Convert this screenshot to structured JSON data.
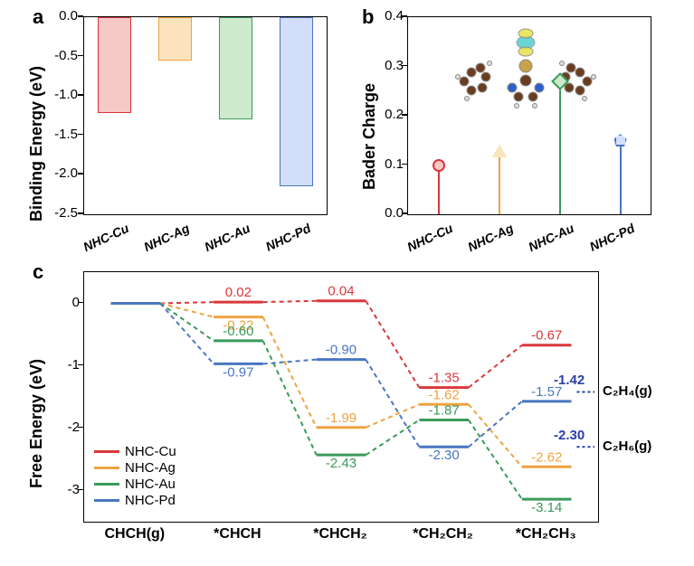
{
  "colors": {
    "cu": "#d9383a",
    "ag": "#eda33f",
    "au": "#3a9a5a",
    "pd": "#4976c0",
    "cu_fill": "#f6c9c9",
    "ag_fill": "#fbe4bd",
    "au_fill": "#cdeacd",
    "pd_fill": "#d2defa",
    "ref": "#2b3fa8"
  },
  "panelA": {
    "label": "a",
    "ylabel": "Binding Energy (eV)",
    "ylim": [
      -2.5,
      0.0
    ],
    "ytick_step": 0.5,
    "categories": [
      "NHC-Cu",
      "NHC-Ag",
      "NHC-Au",
      "NHC-Pd"
    ],
    "values": [
      -1.22,
      -0.55,
      -1.3,
      -2.15
    ],
    "colors": [
      "cu",
      "ag",
      "au",
      "pd"
    ]
  },
  "panelB": {
    "label": "b",
    "ylabel": "Bader Charge",
    "ylim": [
      0.0,
      0.4
    ],
    "ytick_step": 0.1,
    "categories": [
      "NHC-Cu",
      "NHC-Ag",
      "NHC-Au",
      "NHC-Pd"
    ],
    "values": [
      0.1,
      0.12,
      0.27,
      0.15
    ],
    "markers": [
      "circle",
      "triangle",
      "diamond",
      "pentagon"
    ],
    "colors": [
      "cu",
      "ag",
      "au",
      "pd"
    ]
  },
  "panelC": {
    "label": "c",
    "ylabel": "Free Energy (eV)",
    "ylim": [
      -3.5,
      0.5
    ],
    "yticks": [
      -3,
      -2,
      -1,
      0
    ],
    "xcats": [
      "CHCH(g)",
      "*CHCH",
      "*CHCH₂",
      "*CH₂CH₂",
      "*CH₂CH₃"
    ],
    "series": {
      "NHC-Cu": {
        "color": "cu",
        "y": [
          0,
          0.02,
          0.04,
          -1.35,
          -0.67
        ]
      },
      "NHC-Ag": {
        "color": "ag",
        "y": [
          0,
          -0.22,
          -1.99,
          -1.62,
          -2.62
        ]
      },
      "NHC-Au": {
        "color": "au",
        "y": [
          0,
          -0.6,
          -2.43,
          -1.87,
          -3.14
        ]
      },
      "NHC-Pd": {
        "color": "pd",
        "y": [
          0,
          -0.97,
          -0.9,
          -2.3,
          -1.57
        ]
      }
    },
    "legend": [
      "NHC-Cu",
      "NHC-Ag",
      "NHC-Au",
      "NHC-Pd"
    ],
    "refs": [
      {
        "y": -1.42,
        "label": "C₂H₄(g)",
        "val": "-1.42"
      },
      {
        "y": -2.3,
        "label": "C₂H₆(g)",
        "val": "-2.30"
      }
    ],
    "value_labels": [
      {
        "x": 1,
        "series": "NHC-Cu",
        "text": "0.02",
        "dy": -6
      },
      {
        "x": 2,
        "series": "NHC-Cu",
        "text": "0.04",
        "dy": -6
      },
      {
        "x": 3,
        "series": "NHC-Cu",
        "text": "-1.35",
        "dy": -6
      },
      {
        "x": 4,
        "series": "NHC-Cu",
        "text": "-0.67",
        "dy": -6
      },
      {
        "x": 1,
        "series": "NHC-Ag",
        "text": "-0.22",
        "dy": 14
      },
      {
        "x": 2,
        "series": "NHC-Ag",
        "text": "-1.99",
        "dy": -6
      },
      {
        "x": 3,
        "series": "NHC-Ag",
        "text": "-1.62",
        "dy": -6
      },
      {
        "x": 4,
        "series": "NHC-Ag",
        "text": "-2.62",
        "dy": -6
      },
      {
        "x": 1,
        "series": "NHC-Au",
        "text": "-0.60",
        "dy": -6
      },
      {
        "x": 2,
        "series": "NHC-Au",
        "text": "-2.43",
        "dy": 14
      },
      {
        "x": 3,
        "series": "NHC-Au",
        "text": "-1.87",
        "dy": -6
      },
      {
        "x": 4,
        "series": "NHC-Au",
        "text": "-3.14",
        "dy": 14
      },
      {
        "x": 1,
        "series": "NHC-Pd",
        "text": "-0.97",
        "dy": 14
      },
      {
        "x": 2,
        "series": "NHC-Pd",
        "text": "-0.90",
        "dy": -6
      },
      {
        "x": 3,
        "series": "NHC-Pd",
        "text": "-2.30",
        "dy": 14
      },
      {
        "x": 4,
        "series": "NHC-Pd",
        "text": "-1.57",
        "dy": -6
      }
    ]
  }
}
